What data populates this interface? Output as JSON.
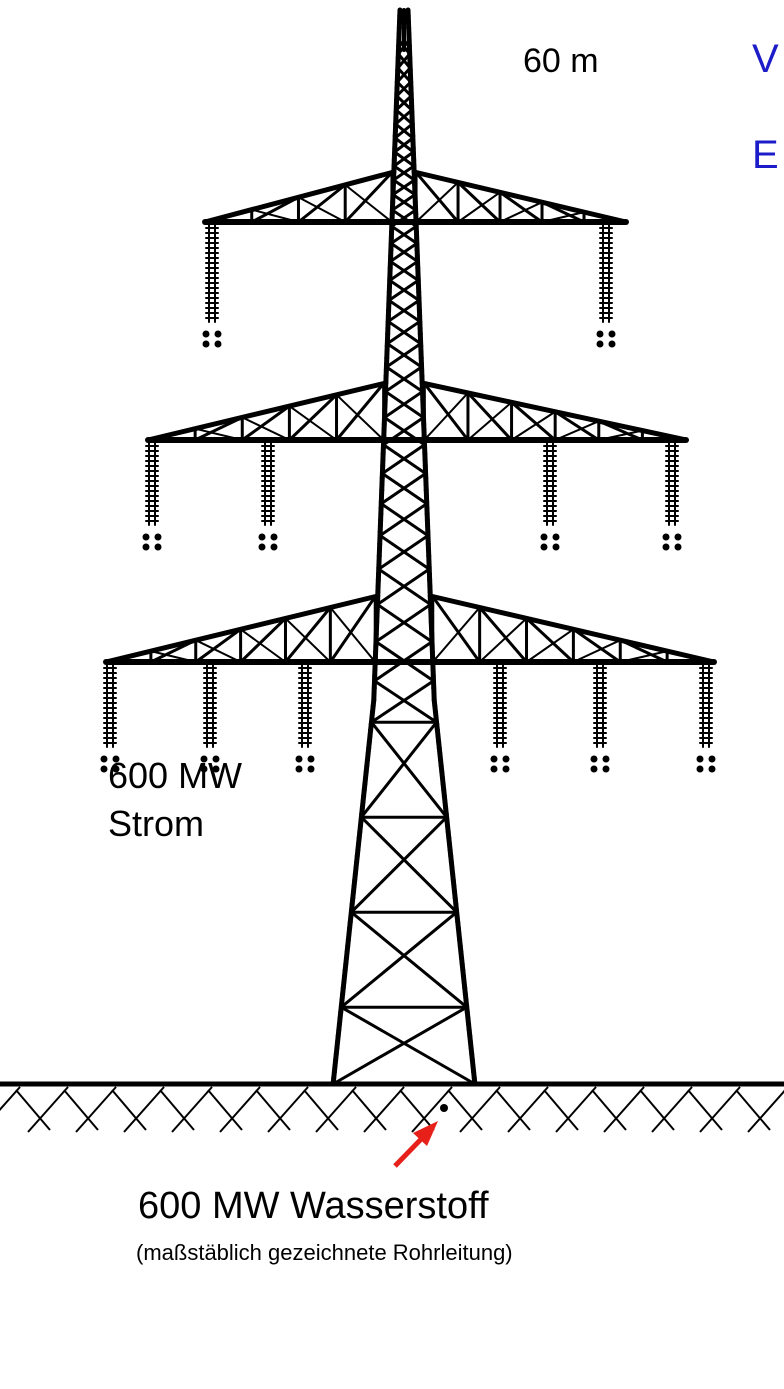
{
  "labels": {
    "height": "60 m",
    "power_line": "600 MW",
    "power_line_medium": "Strom",
    "pipeline": "600 MW Wasserstoff",
    "pipeline_note": "(maßstäblich gezeichnete Rohrleitung)",
    "side_title_1": "V",
    "side_title_2": "E"
  }
}
